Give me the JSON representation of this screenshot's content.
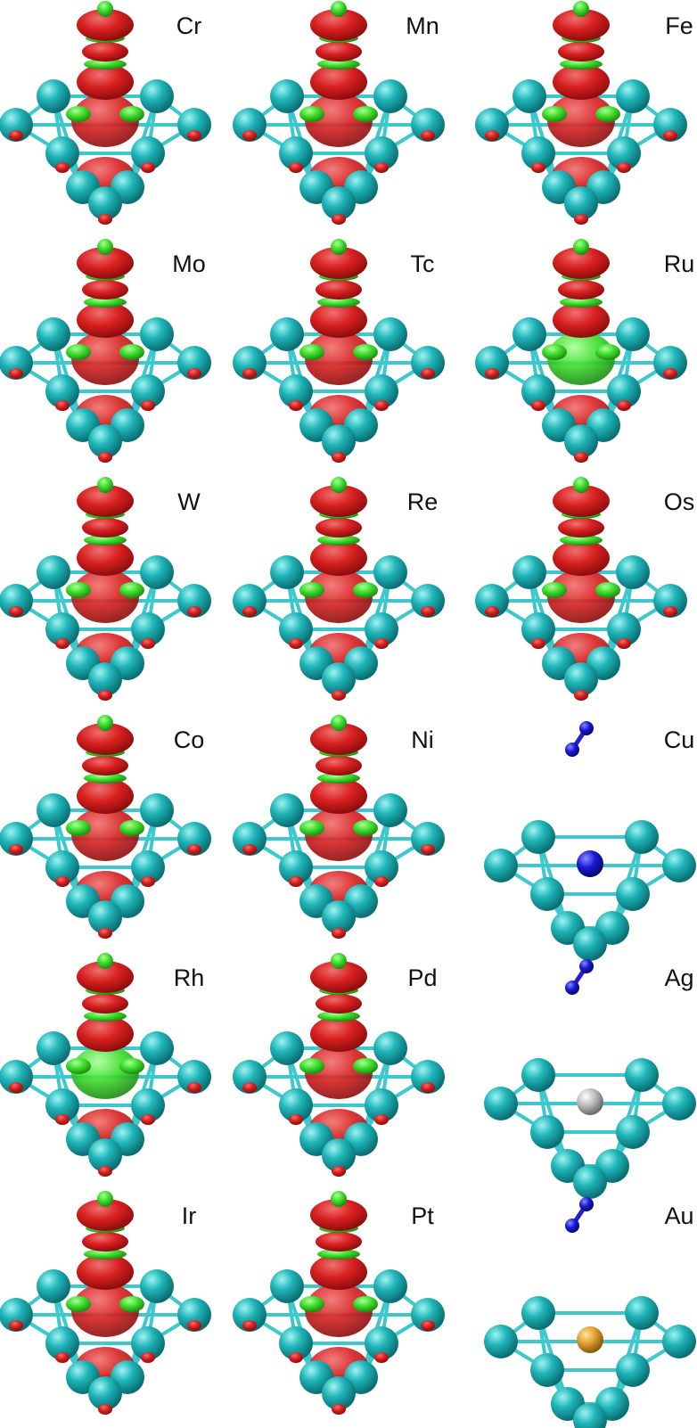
{
  "panels": [
    {
      "label": "Cr"
    },
    {
      "label": "Mn"
    },
    {
      "label": "Fe"
    },
    {
      "label": "Mo"
    },
    {
      "label": "Tc"
    },
    {
      "label": "Ru"
    },
    {
      "label": "W"
    },
    {
      "label": "Re"
    },
    {
      "label": "Os"
    },
    {
      "label": "Co"
    },
    {
      "label": "Ni"
    },
    {
      "label": "Cu"
    },
    {
      "label": "Rh"
    },
    {
      "label": "Pd"
    },
    {
      "label": "Ag"
    },
    {
      "label": "Ir"
    },
    {
      "label": "Pt"
    },
    {
      "label": "Au"
    }
  ]
}
